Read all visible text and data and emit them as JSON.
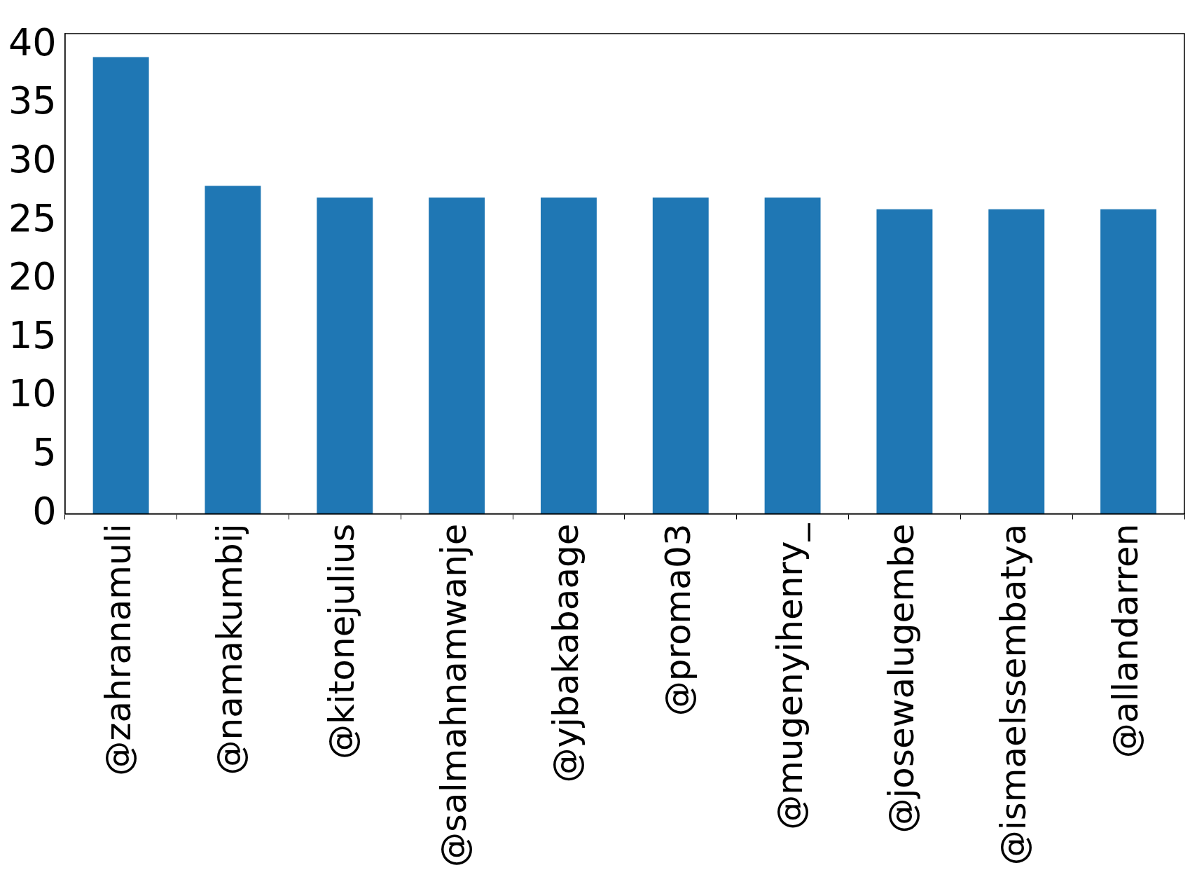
{
  "chart_data": {
    "type": "bar",
    "categories": [
      "@zahranamuli",
      "@namakumbij",
      "@kitonejulius",
      "@salmahnamwanje",
      "@yjbakabaage",
      "@proma03",
      "@mugenyihenry_",
      "@josewalugembe",
      "@ismaelssembatya",
      "@allandarren"
    ],
    "values": [
      39,
      28,
      27,
      27,
      27,
      27,
      27,
      26,
      26,
      26
    ],
    "color": "#1f77b4",
    "ylim": [
      0,
      41
    ],
    "yticks": [
      0,
      5,
      10,
      15,
      20,
      25,
      30,
      35,
      40
    ],
    "grid": false,
    "legend": false
  }
}
